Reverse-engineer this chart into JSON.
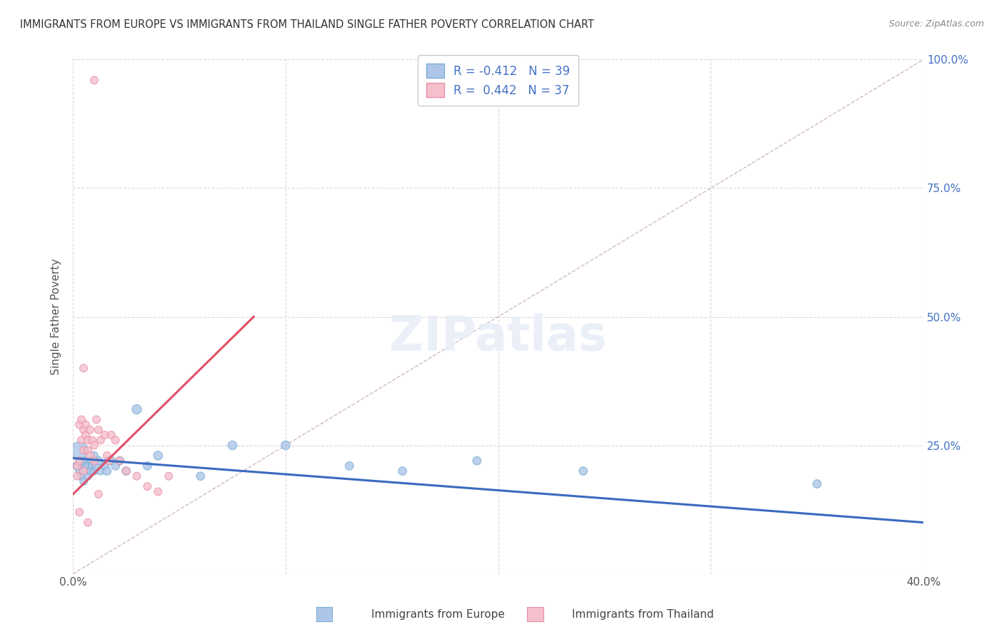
{
  "title": "IMMIGRANTS FROM EUROPE VS IMMIGRANTS FROM THAILAND SINGLE FATHER POVERTY CORRELATION CHART",
  "source": "Source: ZipAtlas.com",
  "ylabel": "Single Father Poverty",
  "y_ticks": [
    0.0,
    0.25,
    0.5,
    0.75,
    1.0
  ],
  "y_tick_labels_right": [
    "",
    "25.0%",
    "50.0%",
    "75.0%",
    "100.0%"
  ],
  "x_ticks": [
    0.0,
    0.1,
    0.2,
    0.3,
    0.4
  ],
  "x_tick_labels": [
    "0.0%",
    "",
    "",
    "",
    "40.0%"
  ],
  "xlim": [
    0.0,
    0.4
  ],
  "ylim": [
    0.0,
    1.0
  ],
  "legend_europe": "Immigrants from Europe",
  "legend_thailand": "Immigrants from Thailand",
  "R_europe": -0.412,
  "N_europe": 39,
  "R_thailand": 0.442,
  "N_thailand": 37,
  "europe_color": "#adc6e8",
  "europe_edge": "#7bafd4",
  "europe_line": "#3a6bbf",
  "thailand_color": "#f5bfcc",
  "thailand_edge": "#e890aa",
  "thailand_line": "#e0506a",
  "diag_color": "#d0b8c8",
  "background": "#ffffff",
  "grid_color": "#d8d8d8",
  "europe_x": [
    0.002,
    0.003,
    0.003,
    0.004,
    0.004,
    0.005,
    0.005,
    0.005,
    0.006,
    0.006,
    0.007,
    0.007,
    0.008,
    0.008,
    0.009,
    0.009,
    0.01,
    0.01,
    0.011,
    0.012,
    0.013,
    0.015,
    0.016,
    0.018,
    0.02,
    0.022,
    0.025,
    0.03,
    0.035,
    0.04,
    0.06,
    0.075,
    0.1,
    0.13,
    0.155,
    0.19,
    0.24,
    0.35,
    0.003
  ],
  "europe_y": [
    0.21,
    0.2,
    0.22,
    0.19,
    0.21,
    0.22,
    0.2,
    0.18,
    0.21,
    0.2,
    0.21,
    0.19,
    0.22,
    0.2,
    0.22,
    0.21,
    0.23,
    0.2,
    0.21,
    0.22,
    0.2,
    0.21,
    0.2,
    0.22,
    0.21,
    0.22,
    0.2,
    0.32,
    0.21,
    0.23,
    0.19,
    0.25,
    0.25,
    0.21,
    0.2,
    0.22,
    0.2,
    0.175,
    0.24
  ],
  "europe_sizes": [
    80,
    60,
    60,
    60,
    60,
    60,
    60,
    60,
    60,
    60,
    60,
    60,
    60,
    60,
    70,
    60,
    60,
    60,
    70,
    70,
    60,
    70,
    70,
    70,
    70,
    70,
    70,
    90,
    70,
    80,
    70,
    80,
    80,
    70,
    70,
    70,
    70,
    70,
    300
  ],
  "thailand_x": [
    0.002,
    0.002,
    0.003,
    0.003,
    0.004,
    0.004,
    0.005,
    0.005,
    0.005,
    0.006,
    0.006,
    0.007,
    0.007,
    0.008,
    0.008,
    0.009,
    0.01,
    0.01,
    0.011,
    0.012,
    0.013,
    0.015,
    0.016,
    0.017,
    0.018,
    0.02,
    0.022,
    0.025,
    0.03,
    0.035,
    0.04,
    0.045,
    0.005,
    0.003,
    0.007,
    0.012,
    0.01
  ],
  "thailand_y": [
    0.21,
    0.19,
    0.29,
    0.22,
    0.3,
    0.26,
    0.28,
    0.24,
    0.2,
    0.29,
    0.27,
    0.26,
    0.24,
    0.28,
    0.23,
    0.26,
    0.25,
    0.22,
    0.3,
    0.28,
    0.26,
    0.27,
    0.23,
    0.22,
    0.27,
    0.26,
    0.22,
    0.2,
    0.19,
    0.17,
    0.16,
    0.19,
    0.4,
    0.12,
    0.1,
    0.155,
    0.96
  ],
  "thailand_sizes": [
    60,
    60,
    60,
    60,
    60,
    60,
    60,
    60,
    60,
    60,
    60,
    60,
    60,
    60,
    60,
    60,
    60,
    60,
    60,
    60,
    60,
    60,
    60,
    60,
    60,
    60,
    60,
    60,
    60,
    60,
    60,
    60,
    60,
    60,
    60,
    60,
    60
  ],
  "europe_line_x": [
    0.0,
    0.4
  ],
  "europe_line_y": [
    0.225,
    0.1
  ],
  "thailand_line_x": [
    0.0,
    0.085
  ],
  "thailand_line_y": [
    0.155,
    0.5
  ]
}
